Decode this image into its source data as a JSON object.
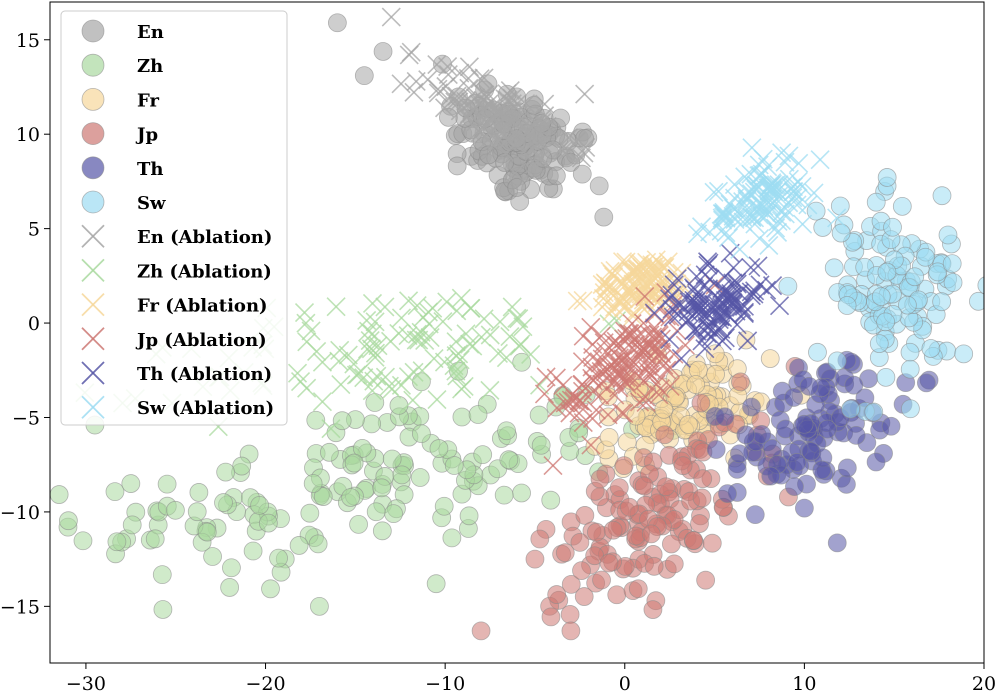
{
  "chart_data": {
    "type": "scatter",
    "title": "",
    "xlabel": "",
    "ylabel": "",
    "xlim": [
      -32,
      20
    ],
    "ylim": [
      -18,
      17
    ],
    "grid": false,
    "legend_position": "top-left",
    "x_ticks": [
      {
        "value": -30,
        "label": "−30"
      },
      {
        "value": -20,
        "label": "−20"
      },
      {
        "value": -10,
        "label": "−10"
      },
      {
        "value": 0,
        "label": "0"
      },
      {
        "value": 10,
        "label": "10"
      },
      {
        "value": 20,
        "label": "20"
      }
    ],
    "y_ticks": [
      {
        "value": 15,
        "label": "15"
      },
      {
        "value": 10,
        "label": "10"
      },
      {
        "value": 5,
        "label": "5"
      },
      {
        "value": 0,
        "label": "0"
      },
      {
        "value": -5,
        "label": "−5"
      },
      {
        "value": -10,
        "label": "−10"
      },
      {
        "value": -15,
        "label": "−15"
      }
    ],
    "series": [
      {
        "name": "En",
        "marker": "circle",
        "color": "#a6a6a6",
        "cluster": {
          "cx": -6,
          "cy": 9.5,
          "sx": 2.2,
          "sy": 1.5,
          "rot": -0.5,
          "n": 140
        }
      },
      {
        "name": "Zh",
        "marker": "circle",
        "color": "#a9d99f",
        "cluster": {
          "cx": -15,
          "cy": -8.5,
          "sx": 7.5,
          "sy": 2.0,
          "rot": 0.18,
          "n": 170
        }
      },
      {
        "name": "Fr",
        "marker": "circle",
        "color": "#f6d79b",
        "cluster": {
          "cx": 3,
          "cy": -4.5,
          "sx": 2.4,
          "sy": 1.2,
          "rot": 0.3,
          "n": 110
        }
      },
      {
        "name": "Jp",
        "marker": "circle",
        "color": "#cd7873",
        "cluster": {
          "cx": 2,
          "cy": -10,
          "sx": 3.5,
          "sy": 1.6,
          "rot": 0.6,
          "n": 140
        }
      },
      {
        "name": "Th",
        "marker": "circle",
        "color": "#5656a6",
        "cluster": {
          "cx": 10.5,
          "cy": -5.5,
          "sx": 2.3,
          "sy": 1.6,
          "rot": 0.4,
          "n": 110
        }
      },
      {
        "name": "Sw",
        "marker": "circle",
        "color": "#9ddcf2",
        "cluster": {
          "cx": 15,
          "cy": 1.5,
          "sx": 2.2,
          "sy": 2.4,
          "rot": 0.4,
          "n": 120
        }
      },
      {
        "name": "En (Ablation)",
        "marker": "x",
        "color": "#a6a6a6",
        "cluster": {
          "cx": -7,
          "cy": 11,
          "sx": 2.3,
          "sy": 0.9,
          "rot": -0.45,
          "n": 120
        }
      },
      {
        "name": "Zh (Ablation)",
        "marker": "x",
        "color": "#a9d99f",
        "cluster": {
          "cx": -13,
          "cy": -1.5,
          "sx": 5.5,
          "sy": 1.6,
          "rot": 0.15,
          "n": 120
        }
      },
      {
        "name": "Fr (Ablation)",
        "marker": "x",
        "color": "#f6d79b",
        "cluster": {
          "cx": 1,
          "cy": 2,
          "sx": 1.4,
          "sy": 0.7,
          "rot": 0.2,
          "n": 110
        }
      },
      {
        "name": "Jp (Ablation)",
        "marker": "x",
        "color": "#cd7873",
        "cluster": {
          "cx": 0,
          "cy": -2,
          "sx": 2.0,
          "sy": 1.1,
          "rot": 0.6,
          "n": 140
        }
      },
      {
        "name": "Th (Ablation)",
        "marker": "x",
        "color": "#5656a6",
        "cluster": {
          "cx": 5,
          "cy": 1,
          "sx": 1.5,
          "sy": 0.9,
          "rot": 0.3,
          "n": 110
        }
      },
      {
        "name": "Sw (Ablation)",
        "marker": "x",
        "color": "#9ddcf2",
        "cluster": {
          "cx": 7.5,
          "cy": 6.5,
          "sx": 1.6,
          "sy": 1.0,
          "rot": 0.5,
          "n": 110
        }
      }
    ],
    "outliers": [
      {
        "series": "En",
        "x": -16,
        "y": 15.9
      },
      {
        "series": "En",
        "x": -14.5,
        "y": 13.1
      },
      {
        "series": "En (Ablation)",
        "x": -13,
        "y": 16.2
      },
      {
        "series": "En (Ablation)",
        "x": -12,
        "y": 14.2
      },
      {
        "series": "Zh",
        "x": -29.5,
        "y": -5.4
      },
      {
        "series": "Zh",
        "x": -27.5,
        "y": -8.5
      },
      {
        "series": "Zh",
        "x": -22,
        "y": -14
      },
      {
        "series": "Zh",
        "x": -17,
        "y": -15
      },
      {
        "series": "Zh",
        "x": -10.5,
        "y": -13.8
      },
      {
        "series": "Jp",
        "x": -8,
        "y": -16.3
      },
      {
        "series": "Jp",
        "x": -3,
        "y": -16.3
      },
      {
        "series": "Jp",
        "x": -5,
        "y": -12.5
      },
      {
        "series": "Sw",
        "x": 14,
        "y": 6.4
      },
      {
        "series": "Sw",
        "x": 12,
        "y": 6.2
      },
      {
        "series": "Th",
        "x": 10,
        "y": -9.8
      }
    ]
  }
}
